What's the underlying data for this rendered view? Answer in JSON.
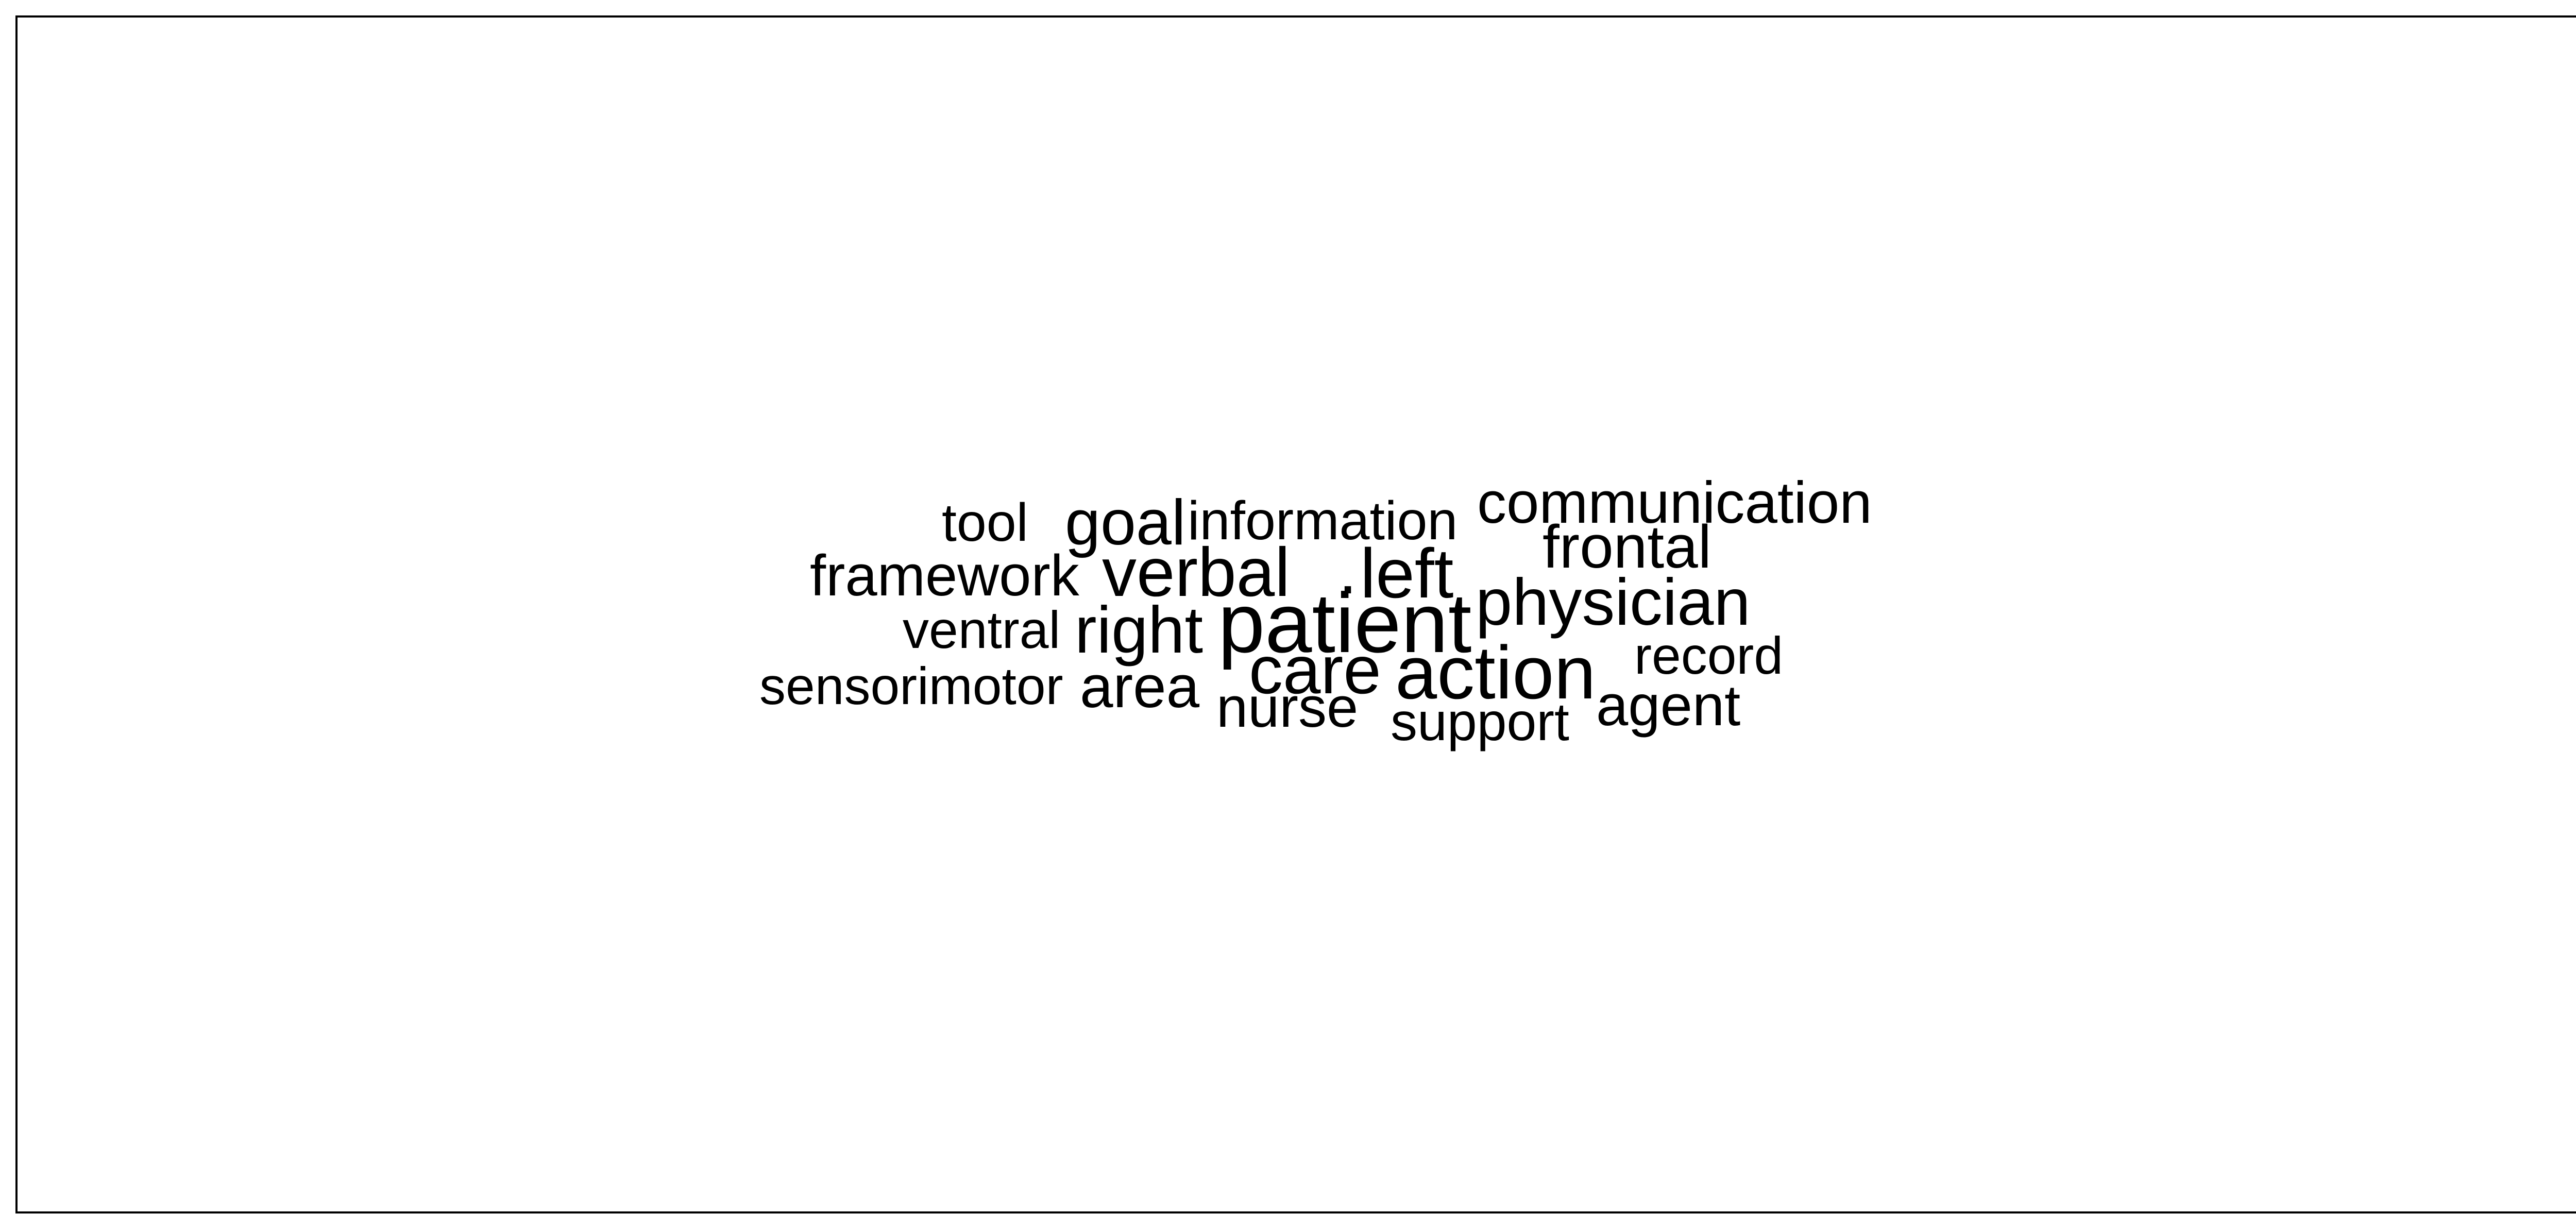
{
  "word_cloud": {
    "words": [
      {
        "key": "tool",
        "text": "tool",
        "weight": 1
      },
      {
        "key": "goal",
        "text": "goal",
        "weight": 2
      },
      {
        "key": "information",
        "text": "information",
        "weight": 1
      },
      {
        "key": "communication",
        "text": "communication",
        "weight": 2
      },
      {
        "key": "framework",
        "text": "framework",
        "weight": 1
      },
      {
        "key": "verbal",
        "text": "verbal",
        "weight": 3
      },
      {
        "key": "left",
        "text": "left",
        "weight": 3
      },
      {
        "key": "frontal",
        "text": "frontal",
        "weight": 2
      },
      {
        "key": "ventral",
        "text": "ventral",
        "weight": 1
      },
      {
        "key": "right",
        "text": "right",
        "weight": 3
      },
      {
        "key": "patient",
        "text": "patient",
        "weight": 5
      },
      {
        "key": "physician",
        "text": "physician",
        "weight": 3
      },
      {
        "key": "care",
        "text": "care",
        "weight": 4
      },
      {
        "key": "action",
        "text": "action",
        "weight": 4
      },
      {
        "key": "record",
        "text": "record",
        "weight": 1
      },
      {
        "key": "sensorimotor",
        "text": "sensorimotor",
        "weight": 1
      },
      {
        "key": "area",
        "text": "area",
        "weight": 2
      },
      {
        "key": "nurse",
        "text": "nurse",
        "weight": 2
      },
      {
        "key": "support",
        "text": "support",
        "weight": 1
      },
      {
        "key": "agent",
        "text": "agent",
        "weight": 2
      }
    ]
  }
}
